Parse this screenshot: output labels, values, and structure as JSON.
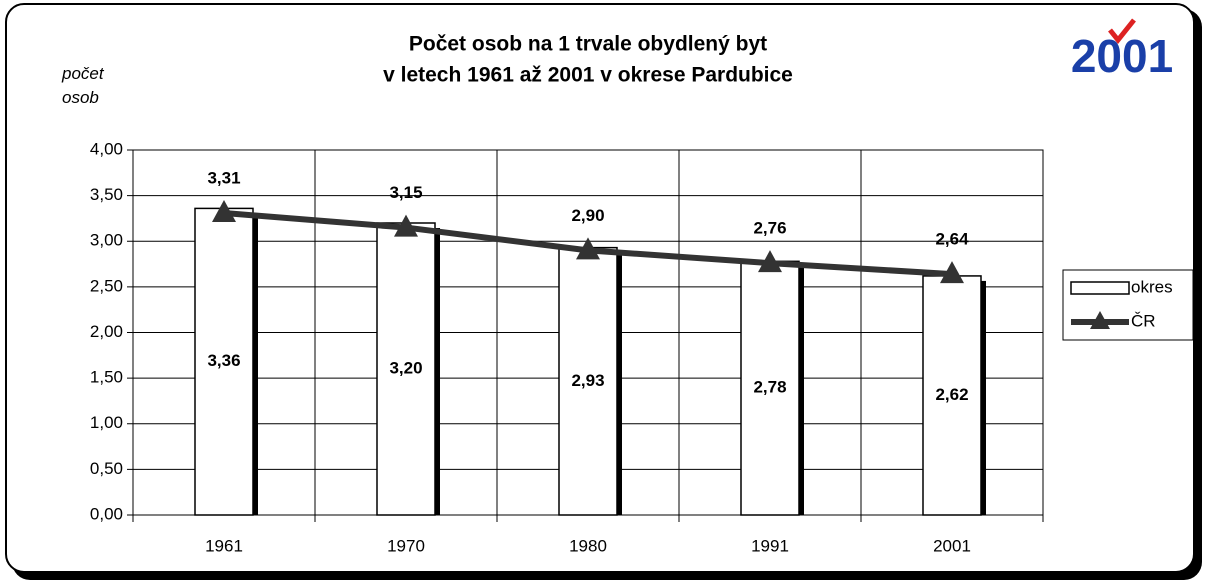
{
  "chart_data": {
    "type": "bar_line",
    "title": [
      "Počet osob na 1 trvale obydlený byt",
      "v letech 1961 až 2001 v okrese Pardubice"
    ],
    "y_label": "počet osob",
    "logo": "2001",
    "categories": [
      "1961",
      "1970",
      "1980",
      "1991",
      "2001"
    ],
    "series": [
      {
        "name": "okres",
        "type": "bar",
        "color": "#ffffff",
        "values": [
          3.36,
          3.2,
          2.93,
          2.78,
          2.62
        ],
        "value_labels": [
          "3,36",
          "3,20",
          "2,93",
          "2,78",
          "2,62"
        ]
      },
      {
        "name": "ČR",
        "type": "line",
        "color": "#333333",
        "values": [
          3.31,
          3.15,
          2.9,
          2.76,
          2.64
        ],
        "value_labels": [
          "3,31",
          "3,15",
          "2,90",
          "2,76",
          "2,64"
        ]
      }
    ],
    "ylim": [
      0,
      4
    ],
    "yticks": [
      {
        "value": 0,
        "label": "0,00"
      },
      {
        "value": 0.5,
        "label": "0,50"
      },
      {
        "value": 1,
        "label": "1,00"
      },
      {
        "value": 1.5,
        "label": "1,50"
      },
      {
        "value": 2,
        "label": "2,00"
      },
      {
        "value": 2.5,
        "label": "2,50"
      },
      {
        "value": 3,
        "label": "3,00"
      },
      {
        "value": 3.5,
        "label": "3,50"
      },
      {
        "value": 4,
        "label": "4,00"
      }
    ],
    "grid": true,
    "legend": "right"
  }
}
